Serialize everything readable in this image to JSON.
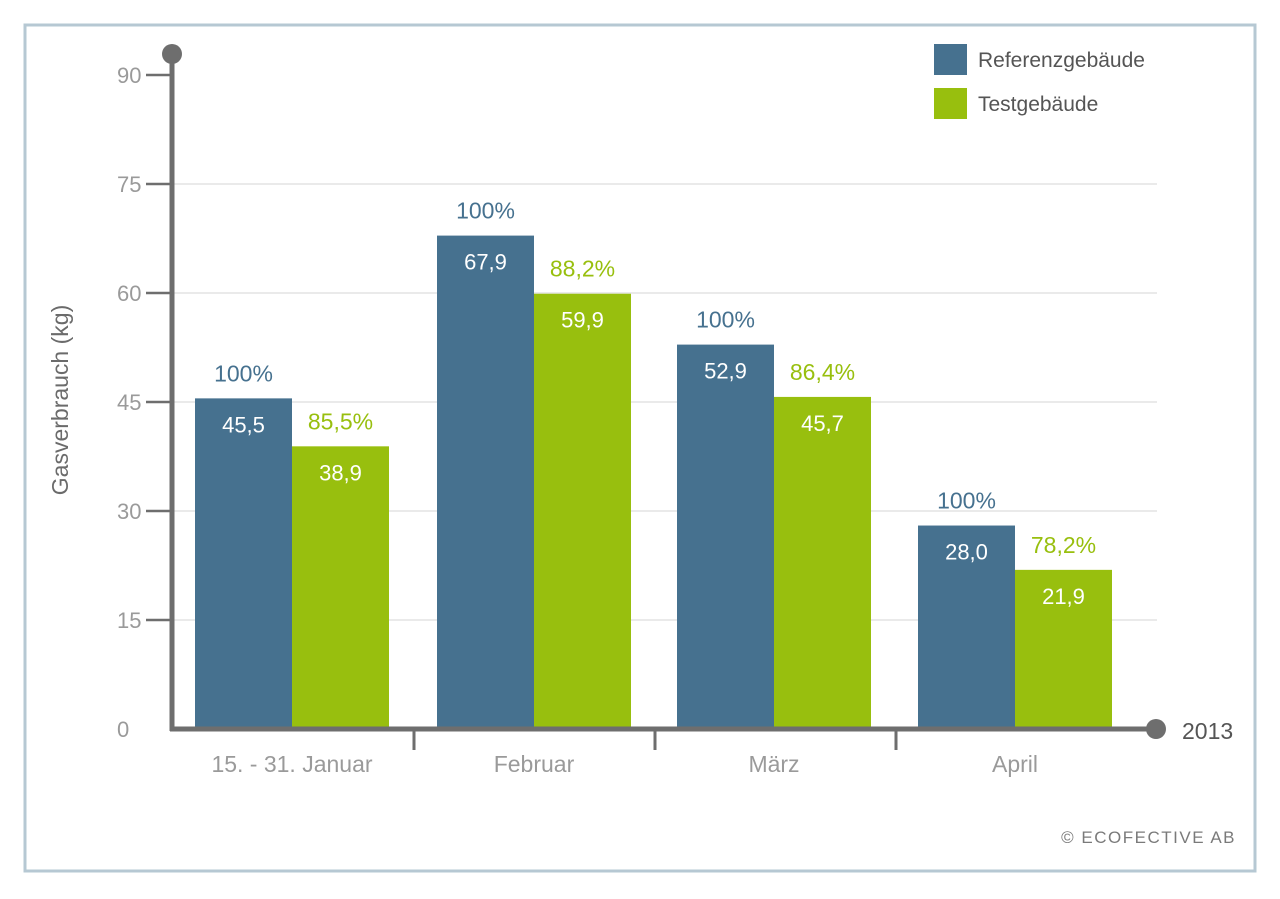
{
  "chart_data": {
    "type": "bar",
    "categories": [
      "15. - 31. Januar",
      "Februar",
      "März",
      "April"
    ],
    "series": [
      {
        "name": "Referenzgebäude",
        "color": "#46718f",
        "values": [
          45.5,
          67.9,
          52.9,
          28.0
        ],
        "value_labels": [
          "45,5",
          "67,9",
          "52,9",
          "28,0"
        ],
        "percent_labels": [
          "100%",
          "100%",
          "100%",
          "100%"
        ]
      },
      {
        "name": "Testgebäude",
        "color": "#98bf0e",
        "values": [
          38.9,
          59.9,
          45.7,
          21.9
        ],
        "value_labels": [
          "38,9",
          "59,9",
          "45,7",
          "21,9"
        ],
        "percent_labels": [
          "85,5%",
          "88,2%",
          "86,4%",
          "78,2%"
        ]
      }
    ],
    "title": "",
    "xlabel": "2013",
    "ylabel": "Gasverbrauch (kg)",
    "ylim": [
      0,
      90
    ],
    "yticks": [
      0,
      15,
      30,
      45,
      60,
      75,
      90
    ],
    "grid": true,
    "legend_position": "top-right"
  },
  "footer": {
    "copyright": "© ECOFECTIVE AB"
  },
  "colors": {
    "frame": "#b6c8d3",
    "axis": "#6e6e6e",
    "grid": "#e3e3e3"
  }
}
